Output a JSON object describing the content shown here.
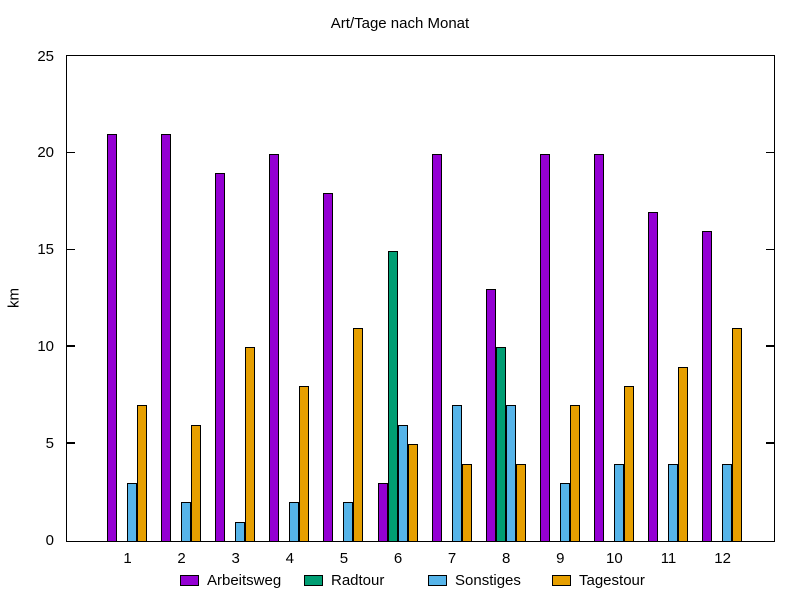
{
  "title": "Art/Tage nach Monat",
  "y_axis_label": "km",
  "colors": {
    "background": "#ffffff",
    "axis": "#000000",
    "text": "#000000",
    "arbeitsweg": "#9400d3",
    "radtour": "#009e73",
    "sonstiges": "#56b4e9",
    "tagestour": "#e69f00"
  },
  "chart_data": {
    "type": "bar",
    "title": "Art/Tage nach Monat",
    "xlabel": "",
    "ylabel": "km",
    "categories": [
      "1",
      "2",
      "3",
      "4",
      "5",
      "6",
      "7",
      "8",
      "9",
      "10",
      "11",
      "12"
    ],
    "series": [
      {
        "name": "Arbeitsweg",
        "color": "#9400d3",
        "values": [
          21,
          21,
          19,
          20,
          18,
          3,
          20,
          13,
          20,
          20,
          17,
          16
        ]
      },
      {
        "name": "Radtour",
        "color": "#009e73",
        "values": [
          0,
          0,
          0,
          0,
          0,
          15,
          0,
          10,
          0,
          0,
          0,
          0
        ]
      },
      {
        "name": "Sonstiges",
        "color": "#56b4e9",
        "values": [
          3,
          2,
          1,
          2,
          2,
          6,
          7,
          7,
          3,
          4,
          4,
          4
        ]
      },
      {
        "name": "Tagestour",
        "color": "#e69f00",
        "values": [
          7,
          6,
          10,
          8,
          11,
          5,
          4,
          4,
          7,
          8,
          9,
          11
        ]
      }
    ],
    "ylim": [
      0,
      25
    ],
    "yticks": [
      0,
      5,
      10,
      15,
      20,
      25
    ],
    "grid": false,
    "legend_position": "bottom",
    "bar_outline_color": "#000000"
  }
}
